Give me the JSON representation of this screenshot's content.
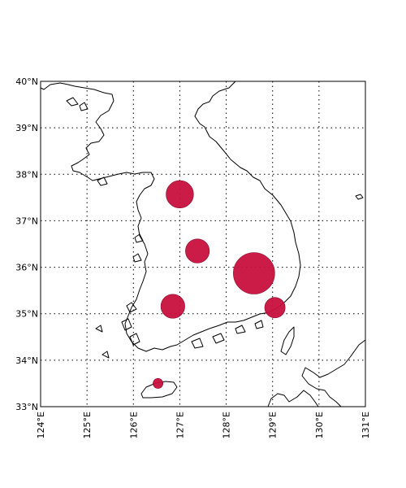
{
  "chart_data": {
    "type": "scatter",
    "projection": "Plate Carree",
    "xlim": [
      124,
      131
    ],
    "ylim": [
      33,
      40
    ],
    "grid": true,
    "x_ticks": [
      "124°E",
      "125°E",
      "126°E",
      "127°E",
      "128°E",
      "129°E",
      "130°E",
      "131°E"
    ],
    "y_ticks": [
      "33°N",
      "34°N",
      "35°N",
      "36°N",
      "37°N",
      "38°N",
      "39°N",
      "40°N"
    ],
    "x_tick_values": [
      124,
      125,
      126,
      127,
      128,
      129,
      130,
      131
    ],
    "y_tick_values": [
      33,
      34,
      35,
      36,
      37,
      38,
      39,
      40
    ],
    "marker_color": "#c8103e",
    "points": [
      {
        "lon": 127.0,
        "lat": 37.57,
        "size": 3
      },
      {
        "lon": 127.38,
        "lat": 36.35,
        "size": 2.5
      },
      {
        "lon": 128.6,
        "lat": 35.87,
        "size": 5
      },
      {
        "lon": 126.85,
        "lat": 35.16,
        "size": 2.5
      },
      {
        "lon": 129.05,
        "lat": 35.13,
        "size": 2
      },
      {
        "lon": 126.53,
        "lat": 33.5,
        "size": 0.5
      }
    ]
  }
}
